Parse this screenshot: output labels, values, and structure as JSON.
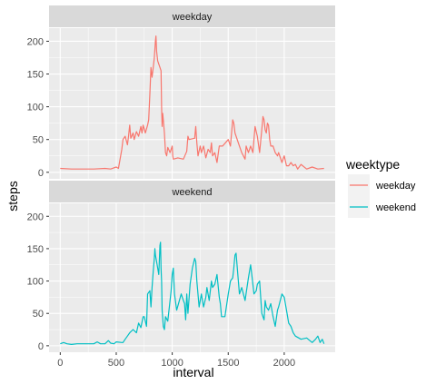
{
  "chart_data": {
    "type": "line",
    "xlabel": "interval",
    "ylabel": "steps",
    "xlim": [
      -100,
      2455
    ],
    "ylim": [
      -10,
      220
    ],
    "x_ticks": [
      0,
      500,
      1000,
      1500,
      2000
    ],
    "y_ticks": [
      0,
      50,
      100,
      150,
      200
    ],
    "grid": true,
    "legend": {
      "title": "weektype",
      "placement": "right"
    },
    "panels": [
      {
        "label": "weekday",
        "series": "weekday",
        "color": "#F8766D",
        "points": [
          [
            0,
            6
          ],
          [
            100,
            5
          ],
          [
            200,
            5
          ],
          [
            300,
            5
          ],
          [
            400,
            6
          ],
          [
            450,
            5
          ],
          [
            500,
            8
          ],
          [
            520,
            6
          ],
          [
            550,
            35
          ],
          [
            560,
            50
          ],
          [
            580,
            55
          ],
          [
            600,
            42
          ],
          [
            610,
            55
          ],
          [
            620,
            72
          ],
          [
            630,
            52
          ],
          [
            650,
            60
          ],
          [
            660,
            50
          ],
          [
            680,
            62
          ],
          [
            700,
            55
          ],
          [
            720,
            70
          ],
          [
            730,
            60
          ],
          [
            740,
            72
          ],
          [
            760,
            60
          ],
          [
            780,
            72
          ],
          [
            790,
            80
          ],
          [
            800,
            120
          ],
          [
            810,
            160
          ],
          [
            820,
            145
          ],
          [
            830,
            160
          ],
          [
            840,
            175
          ],
          [
            850,
            200
          ],
          [
            855,
            208
          ],
          [
            860,
            185
          ],
          [
            870,
            170
          ],
          [
            890,
            160
          ],
          [
            900,
            155
          ],
          [
            905,
            100
          ],
          [
            910,
            70
          ],
          [
            915,
            90
          ],
          [
            920,
            80
          ],
          [
            930,
            60
          ],
          [
            940,
            30
          ],
          [
            950,
            25
          ],
          [
            960,
            38
          ],
          [
            980,
            30
          ],
          [
            1000,
            40
          ],
          [
            1005,
            25
          ],
          [
            1010,
            20
          ],
          [
            1050,
            22
          ],
          [
            1100,
            20
          ],
          [
            1130,
            32
          ],
          [
            1140,
            55
          ],
          [
            1150,
            50
          ],
          [
            1200,
            52
          ],
          [
            1210,
            70
          ],
          [
            1220,
            45
          ],
          [
            1230,
            25
          ],
          [
            1250,
            40
          ],
          [
            1260,
            30
          ],
          [
            1280,
            40
          ],
          [
            1300,
            22
          ],
          [
            1320,
            35
          ],
          [
            1340,
            30
          ],
          [
            1350,
            45
          ],
          [
            1360,
            25
          ],
          [
            1380,
            30
          ],
          [
            1400,
            15
          ],
          [
            1420,
            40
          ],
          [
            1450,
            40
          ],
          [
            1500,
            50
          ],
          [
            1520,
            40
          ],
          [
            1540,
            80
          ],
          [
            1550,
            75
          ],
          [
            1560,
            60
          ],
          [
            1600,
            40
          ],
          [
            1620,
            30
          ],
          [
            1650,
            20
          ],
          [
            1660,
            40
          ],
          [
            1680,
            30
          ],
          [
            1700,
            40
          ],
          [
            1720,
            30
          ],
          [
            1740,
            70
          ],
          [
            1750,
            62
          ],
          [
            1760,
            55
          ],
          [
            1780,
            30
          ],
          [
            1800,
            65
          ],
          [
            1810,
            85
          ],
          [
            1820,
            80
          ],
          [
            1830,
            65
          ],
          [
            1840,
            60
          ],
          [
            1850,
            75
          ],
          [
            1860,
            72
          ],
          [
            1870,
            50
          ],
          [
            1880,
            40
          ],
          [
            1900,
            40
          ],
          [
            1920,
            30
          ],
          [
            1940,
            25
          ],
          [
            1950,
            30
          ],
          [
            1980,
            15
          ],
          [
            2000,
            25
          ],
          [
            2020,
            10
          ],
          [
            2040,
            10
          ],
          [
            2060,
            15
          ],
          [
            2080,
            10
          ],
          [
            2100,
            12
          ],
          [
            2120,
            5
          ],
          [
            2150,
            12
          ],
          [
            2200,
            5
          ],
          [
            2250,
            8
          ],
          [
            2300,
            5
          ],
          [
            2355,
            6
          ]
        ]
      },
      {
        "label": "weekend",
        "series": "weekend",
        "color": "#00BFC4",
        "points": [
          [
            0,
            3
          ],
          [
            30,
            5
          ],
          [
            60,
            3
          ],
          [
            100,
            2
          ],
          [
            150,
            3
          ],
          [
            200,
            3
          ],
          [
            250,
            3
          ],
          [
            300,
            3
          ],
          [
            330,
            6
          ],
          [
            360,
            3
          ],
          [
            400,
            3
          ],
          [
            430,
            8
          ],
          [
            450,
            4
          ],
          [
            480,
            3
          ],
          [
            500,
            6
          ],
          [
            550,
            5
          ],
          [
            560,
            5
          ],
          [
            580,
            10
          ],
          [
            600,
            15
          ],
          [
            620,
            20
          ],
          [
            650,
            25
          ],
          [
            680,
            20
          ],
          [
            700,
            35
          ],
          [
            720,
            28
          ],
          [
            740,
            45
          ],
          [
            750,
            45
          ],
          [
            770,
            30
          ],
          [
            780,
            80
          ],
          [
            800,
            85
          ],
          [
            810,
            60
          ],
          [
            820,
            90
          ],
          [
            830,
            115
          ],
          [
            840,
            135
          ],
          [
            845,
            150
          ],
          [
            850,
            140
          ],
          [
            860,
            130
          ],
          [
            870,
            120
          ],
          [
            880,
            110
          ],
          [
            890,
            155
          ],
          [
            895,
            160
          ],
          [
            900,
            120
          ],
          [
            905,
            100
          ],
          [
            910,
            55
          ],
          [
            920,
            30
          ],
          [
            930,
            25
          ],
          [
            940,
            45
          ],
          [
            960,
            38
          ],
          [
            990,
            85
          ],
          [
            1000,
            110
          ],
          [
            1010,
            120
          ],
          [
            1020,
            80
          ],
          [
            1040,
            55
          ],
          [
            1080,
            80
          ],
          [
            1100,
            70
          ],
          [
            1110,
            65
          ],
          [
            1120,
            40
          ],
          [
            1130,
            80
          ],
          [
            1140,
            50
          ],
          [
            1160,
            95
          ],
          [
            1180,
            120
          ],
          [
            1200,
            135
          ],
          [
            1210,
            130
          ],
          [
            1220,
            100
          ],
          [
            1240,
            60
          ],
          [
            1260,
            80
          ],
          [
            1280,
            60
          ],
          [
            1300,
            75
          ],
          [
            1310,
            90
          ],
          [
            1330,
            70
          ],
          [
            1350,
            100
          ],
          [
            1360,
            90
          ],
          [
            1380,
            95
          ],
          [
            1400,
            110
          ],
          [
            1420,
            75
          ],
          [
            1430,
            65
          ],
          [
            1440,
            45
          ],
          [
            1470,
            45
          ],
          [
            1500,
            80
          ],
          [
            1520,
            100
          ],
          [
            1540,
            105
          ],
          [
            1550,
            120
          ],
          [
            1560,
            140
          ],
          [
            1570,
            143
          ],
          [
            1590,
            100
          ],
          [
            1600,
            80
          ],
          [
            1620,
            90
          ],
          [
            1650,
            70
          ],
          [
            1680,
            105
          ],
          [
            1700,
            125
          ],
          [
            1710,
            110
          ],
          [
            1730,
            80
          ],
          [
            1750,
            85
          ],
          [
            1760,
            95
          ],
          [
            1780,
            100
          ],
          [
            1790,
            75
          ],
          [
            1800,
            50
          ],
          [
            1820,
            40
          ],
          [
            1830,
            70
          ],
          [
            1840,
            60
          ],
          [
            1860,
            55
          ],
          [
            1880,
            65
          ],
          [
            1900,
            45
          ],
          [
            1920,
            30
          ],
          [
            1940,
            55
          ],
          [
            1950,
            60
          ],
          [
            1980,
            80
          ],
          [
            2000,
            75
          ],
          [
            2020,
            55
          ],
          [
            2040,
            35
          ],
          [
            2060,
            30
          ],
          [
            2080,
            20
          ],
          [
            2100,
            15
          ],
          [
            2150,
            10
          ],
          [
            2200,
            12
          ],
          [
            2250,
            5
          ],
          [
            2280,
            10
          ],
          [
            2300,
            15
          ],
          [
            2320,
            5
          ],
          [
            2340,
            10
          ],
          [
            2355,
            3
          ]
        ]
      }
    ]
  }
}
